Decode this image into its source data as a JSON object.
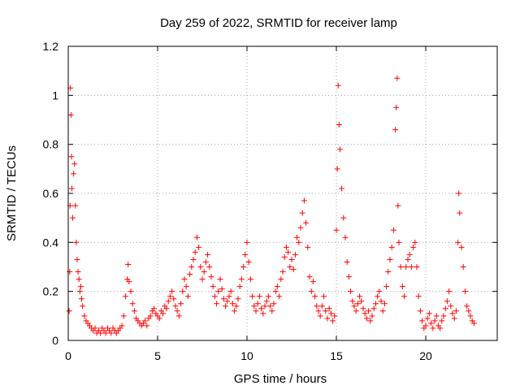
{
  "chart_data": {
    "type": "scatter",
    "title": "Day 259 of 2022, SRMTID for receiver lamp",
    "xlabel": "GPS time / hours",
    "ylabel": "SRMTID / TECUs",
    "xlim": [
      0,
      24
    ],
    "ylim": [
      0,
      1.2
    ],
    "xticks": [
      0,
      5,
      10,
      15,
      20
    ],
    "xtick_labels": [
      "0",
      "5",
      "10",
      "15",
      "20"
    ],
    "yticks": [
      0,
      0.2,
      0.4,
      0.6,
      0.8,
      1,
      1.2
    ],
    "ytick_labels": [
      "0",
      "0.2",
      "0.4",
      "0.6",
      "0.8",
      "1",
      "1.2"
    ],
    "grid": true,
    "marker": "plus",
    "series": [
      {
        "name": "SRMTID",
        "color": "#ff0000",
        "points": [
          [
            0.05,
            0.12
          ],
          [
            0.08,
            0.28
          ],
          [
            0.1,
            0.55
          ],
          [
            0.12,
            1.03
          ],
          [
            0.15,
            0.92
          ],
          [
            0.18,
            0.75
          ],
          [
            0.2,
            0.62
          ],
          [
            0.25,
            0.5
          ],
          [
            0.3,
            0.68
          ],
          [
            0.35,
            0.72
          ],
          [
            0.4,
            0.55
          ],
          [
            0.45,
            0.4
          ],
          [
            0.5,
            0.33
          ],
          [
            0.55,
            0.28
          ],
          [
            0.6,
            0.25
          ],
          [
            0.65,
            0.2
          ],
          [
            0.7,
            0.22
          ],
          [
            0.75,
            0.17
          ],
          [
            0.8,
            0.14
          ],
          [
            0.9,
            0.1
          ],
          [
            1.0,
            0.08
          ],
          [
            1.1,
            0.07
          ],
          [
            1.2,
            0.06
          ],
          [
            1.3,
            0.05
          ],
          [
            1.4,
            0.04
          ],
          [
            1.5,
            0.05
          ],
          [
            1.6,
            0.03
          ],
          [
            1.7,
            0.04
          ],
          [
            1.8,
            0.03
          ],
          [
            1.9,
            0.05
          ],
          [
            2.0,
            0.04
          ],
          [
            2.1,
            0.03
          ],
          [
            2.2,
            0.05
          ],
          [
            2.3,
            0.04
          ],
          [
            2.4,
            0.03
          ],
          [
            2.5,
            0.05
          ],
          [
            2.6,
            0.04
          ],
          [
            2.7,
            0.03
          ],
          [
            2.8,
            0.04
          ],
          [
            2.9,
            0.05
          ],
          [
            3.0,
            0.06
          ],
          [
            3.1,
            0.1
          ],
          [
            3.2,
            0.18
          ],
          [
            3.3,
            0.25
          ],
          [
            3.35,
            0.31
          ],
          [
            3.4,
            0.24
          ],
          [
            3.5,
            0.2
          ],
          [
            3.6,
            0.15
          ],
          [
            3.7,
            0.12
          ],
          [
            3.8,
            0.09
          ],
          [
            3.9,
            0.08
          ],
          [
            4.0,
            0.07
          ],
          [
            4.1,
            0.06
          ],
          [
            4.2,
            0.07
          ],
          [
            4.3,
            0.08
          ],
          [
            4.4,
            0.06
          ],
          [
            4.5,
            0.09
          ],
          [
            4.6,
            0.1
          ],
          [
            4.7,
            0.12
          ],
          [
            4.8,
            0.13
          ],
          [
            4.9,
            0.11
          ],
          [
            5.0,
            0.1
          ],
          [
            5.1,
            0.09
          ],
          [
            5.2,
            0.12
          ],
          [
            5.3,
            0.11
          ],
          [
            5.4,
            0.14
          ],
          [
            5.5,
            0.13
          ],
          [
            5.6,
            0.16
          ],
          [
            5.7,
            0.18
          ],
          [
            5.8,
            0.2
          ],
          [
            5.9,
            0.17
          ],
          [
            6.0,
            0.14
          ],
          [
            6.1,
            0.12
          ],
          [
            6.2,
            0.1
          ],
          [
            6.3,
            0.15
          ],
          [
            6.4,
            0.2
          ],
          [
            6.5,
            0.25
          ],
          [
            6.6,
            0.22
          ],
          [
            6.7,
            0.18
          ],
          [
            6.8,
            0.27
          ],
          [
            6.9,
            0.3
          ],
          [
            7.0,
            0.33
          ],
          [
            7.1,
            0.36
          ],
          [
            7.2,
            0.42
          ],
          [
            7.3,
            0.38
          ],
          [
            7.4,
            0.3
          ],
          [
            7.5,
            0.25
          ],
          [
            7.6,
            0.28
          ],
          [
            7.7,
            0.32
          ],
          [
            7.8,
            0.35
          ],
          [
            7.9,
            0.3
          ],
          [
            8.0,
            0.26
          ],
          [
            8.1,
            0.22
          ],
          [
            8.2,
            0.18
          ],
          [
            8.3,
            0.15
          ],
          [
            8.4,
            0.2
          ],
          [
            8.5,
            0.25
          ],
          [
            8.6,
            0.21
          ],
          [
            8.7,
            0.17
          ],
          [
            8.8,
            0.14
          ],
          [
            8.9,
            0.16
          ],
          [
            9.0,
            0.18
          ],
          [
            9.1,
            0.2
          ],
          [
            9.2,
            0.15
          ],
          [
            9.3,
            0.12
          ],
          [
            9.4,
            0.14
          ],
          [
            9.5,
            0.17
          ],
          [
            9.6,
            0.22
          ],
          [
            9.7,
            0.25
          ],
          [
            9.8,
            0.3
          ],
          [
            9.9,
            0.35
          ],
          [
            10.0,
            0.4
          ],
          [
            10.1,
            0.32
          ],
          [
            10.2,
            0.25
          ],
          [
            10.3,
            0.18
          ],
          [
            10.4,
            0.14
          ],
          [
            10.5,
            0.12
          ],
          [
            10.6,
            0.15
          ],
          [
            10.7,
            0.18
          ],
          [
            10.8,
            0.13
          ],
          [
            10.9,
            0.11
          ],
          [
            11.0,
            0.14
          ],
          [
            11.1,
            0.16
          ],
          [
            11.2,
            0.18
          ],
          [
            11.3,
            0.14
          ],
          [
            11.4,
            0.12
          ],
          [
            11.5,
            0.15
          ],
          [
            11.6,
            0.2
          ],
          [
            11.7,
            0.22
          ],
          [
            11.8,
            0.18
          ],
          [
            11.9,
            0.25
          ],
          [
            12.0,
            0.28
          ],
          [
            12.1,
            0.34
          ],
          [
            12.2,
            0.38
          ],
          [
            12.3,
            0.36
          ],
          [
            12.4,
            0.3
          ],
          [
            12.5,
            0.33
          ],
          [
            12.6,
            0.29
          ],
          [
            12.7,
            0.35
          ],
          [
            12.8,
            0.42
          ],
          [
            12.9,
            0.4
          ],
          [
            13.0,
            0.46
          ],
          [
            13.1,
            0.52
          ],
          [
            13.2,
            0.57
          ],
          [
            13.3,
            0.48
          ],
          [
            13.4,
            0.38
          ],
          [
            13.5,
            0.26
          ],
          [
            13.6,
            0.2
          ],
          [
            13.7,
            0.24
          ],
          [
            13.8,
            0.18
          ],
          [
            13.9,
            0.14
          ],
          [
            14.0,
            0.12
          ],
          [
            14.1,
            0.1
          ],
          [
            14.2,
            0.14
          ],
          [
            14.3,
            0.18
          ],
          [
            14.4,
            0.12
          ],
          [
            14.5,
            0.09
          ],
          [
            14.6,
            0.13
          ],
          [
            14.7,
            0.11
          ],
          [
            14.8,
            0.08
          ],
          [
            14.9,
            0.1
          ],
          [
            15.0,
            0.45
          ],
          [
            15.05,
            0.7
          ],
          [
            15.1,
            1.04
          ],
          [
            15.15,
            0.88
          ],
          [
            15.2,
            0.78
          ],
          [
            15.3,
            0.62
          ],
          [
            15.4,
            0.5
          ],
          [
            15.5,
            0.42
          ],
          [
            15.6,
            0.32
          ],
          [
            15.7,
            0.26
          ],
          [
            15.8,
            0.2
          ],
          [
            15.9,
            0.16
          ],
          [
            16.0,
            0.14
          ],
          [
            16.1,
            0.12
          ],
          [
            16.2,
            0.15
          ],
          [
            16.3,
            0.18
          ],
          [
            16.4,
            0.16
          ],
          [
            16.5,
            0.13
          ],
          [
            16.6,
            0.11
          ],
          [
            16.7,
            0.09
          ],
          [
            16.8,
            0.12
          ],
          [
            16.9,
            0.08
          ],
          [
            17.0,
            0.1
          ],
          [
            17.1,
            0.13
          ],
          [
            17.2,
            0.15
          ],
          [
            17.3,
            0.18
          ],
          [
            17.4,
            0.2
          ],
          [
            17.5,
            0.16
          ],
          [
            17.6,
            0.12
          ],
          [
            17.7,
            0.15
          ],
          [
            17.8,
            0.22
          ],
          [
            17.9,
            0.28
          ],
          [
            18.0,
            0.33
          ],
          [
            18.1,
            0.38
          ],
          [
            18.2,
            0.45
          ],
          [
            18.3,
            0.86
          ],
          [
            18.35,
            0.95
          ],
          [
            18.4,
            1.07
          ],
          [
            18.45,
            0.55
          ],
          [
            18.5,
            0.4
          ],
          [
            18.6,
            0.3
          ],
          [
            18.7,
            0.22
          ],
          [
            18.8,
            0.18
          ],
          [
            18.9,
            0.3
          ],
          [
            19.0,
            0.33
          ],
          [
            19.1,
            0.35
          ],
          [
            19.2,
            0.3
          ],
          [
            19.3,
            0.38
          ],
          [
            19.4,
            0.4
          ],
          [
            19.5,
            0.3
          ],
          [
            19.6,
            0.18
          ],
          [
            19.7,
            0.12
          ],
          [
            19.8,
            0.08
          ],
          [
            19.9,
            0.05
          ],
          [
            20.0,
            0.06
          ],
          [
            20.1,
            0.09
          ],
          [
            20.2,
            0.11
          ],
          [
            20.3,
            0.07
          ],
          [
            20.4,
            0.05
          ],
          [
            20.5,
            0.08
          ],
          [
            20.6,
            0.1
          ],
          [
            20.7,
            0.06
          ],
          [
            20.8,
            0.05
          ],
          [
            20.9,
            0.08
          ],
          [
            21.0,
            0.1
          ],
          [
            21.1,
            0.13
          ],
          [
            21.2,
            0.16
          ],
          [
            21.3,
            0.2
          ],
          [
            21.4,
            0.14
          ],
          [
            21.5,
            0.11
          ],
          [
            21.6,
            0.09
          ],
          [
            21.7,
            0.12
          ],
          [
            21.8,
            0.4
          ],
          [
            21.85,
            0.6
          ],
          [
            21.9,
            0.52
          ],
          [
            22.0,
            0.38
          ],
          [
            22.1,
            0.3
          ],
          [
            22.2,
            0.2
          ],
          [
            22.3,
            0.14
          ],
          [
            22.4,
            0.12
          ],
          [
            22.5,
            0.1
          ],
          [
            22.6,
            0.08
          ],
          [
            22.7,
            0.07
          ]
        ]
      }
    ]
  }
}
